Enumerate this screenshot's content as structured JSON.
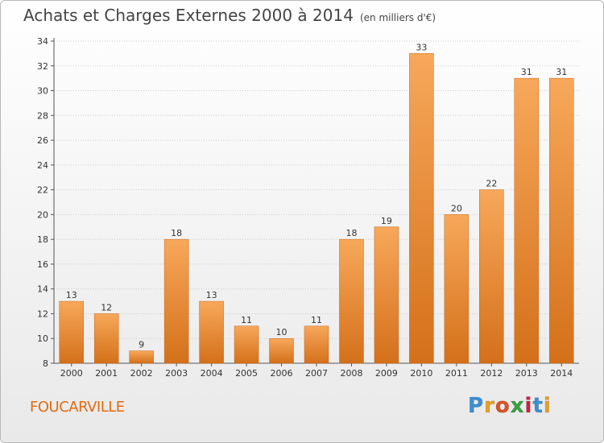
{
  "header": {
    "title": "Achats et Charges Externes 2000 à 2014",
    "subtitle": "(en milliers d'€)"
  },
  "footer": {
    "town": "FOUCARVILLE",
    "logo_letters": [
      "P",
      "r",
      "o",
      "x",
      "i",
      "t",
      "i"
    ],
    "logo_colors": [
      "#3a8fd6",
      "#e8a020",
      "#e05020",
      "#3aa040",
      "#d02040",
      "#3a8fd6",
      "#e8a020"
    ]
  },
  "colors": {
    "bar_top": "#f7a85a",
    "bar_bottom": "#d4701a",
    "grid": "#cccccc"
  },
  "chart_data": {
    "type": "bar",
    "title": "Achats et Charges Externes 2000 à 2014",
    "subtitle": "(en milliers d'€)",
    "categories": [
      "2000",
      "2001",
      "2002",
      "2003",
      "2004",
      "2005",
      "2006",
      "2007",
      "2008",
      "2009",
      "2010",
      "2011",
      "2012",
      "2013",
      "2014"
    ],
    "values": [
      13,
      12,
      9,
      18,
      13,
      11,
      10,
      11,
      18,
      19,
      33,
      20,
      22,
      31,
      31
    ],
    "ylim": [
      8,
      34
    ],
    "yticks": [
      8,
      10,
      12,
      14,
      16,
      18,
      20,
      22,
      24,
      26,
      28,
      30,
      32,
      34
    ],
    "grid": true,
    "xlabel": "",
    "ylabel": ""
  }
}
